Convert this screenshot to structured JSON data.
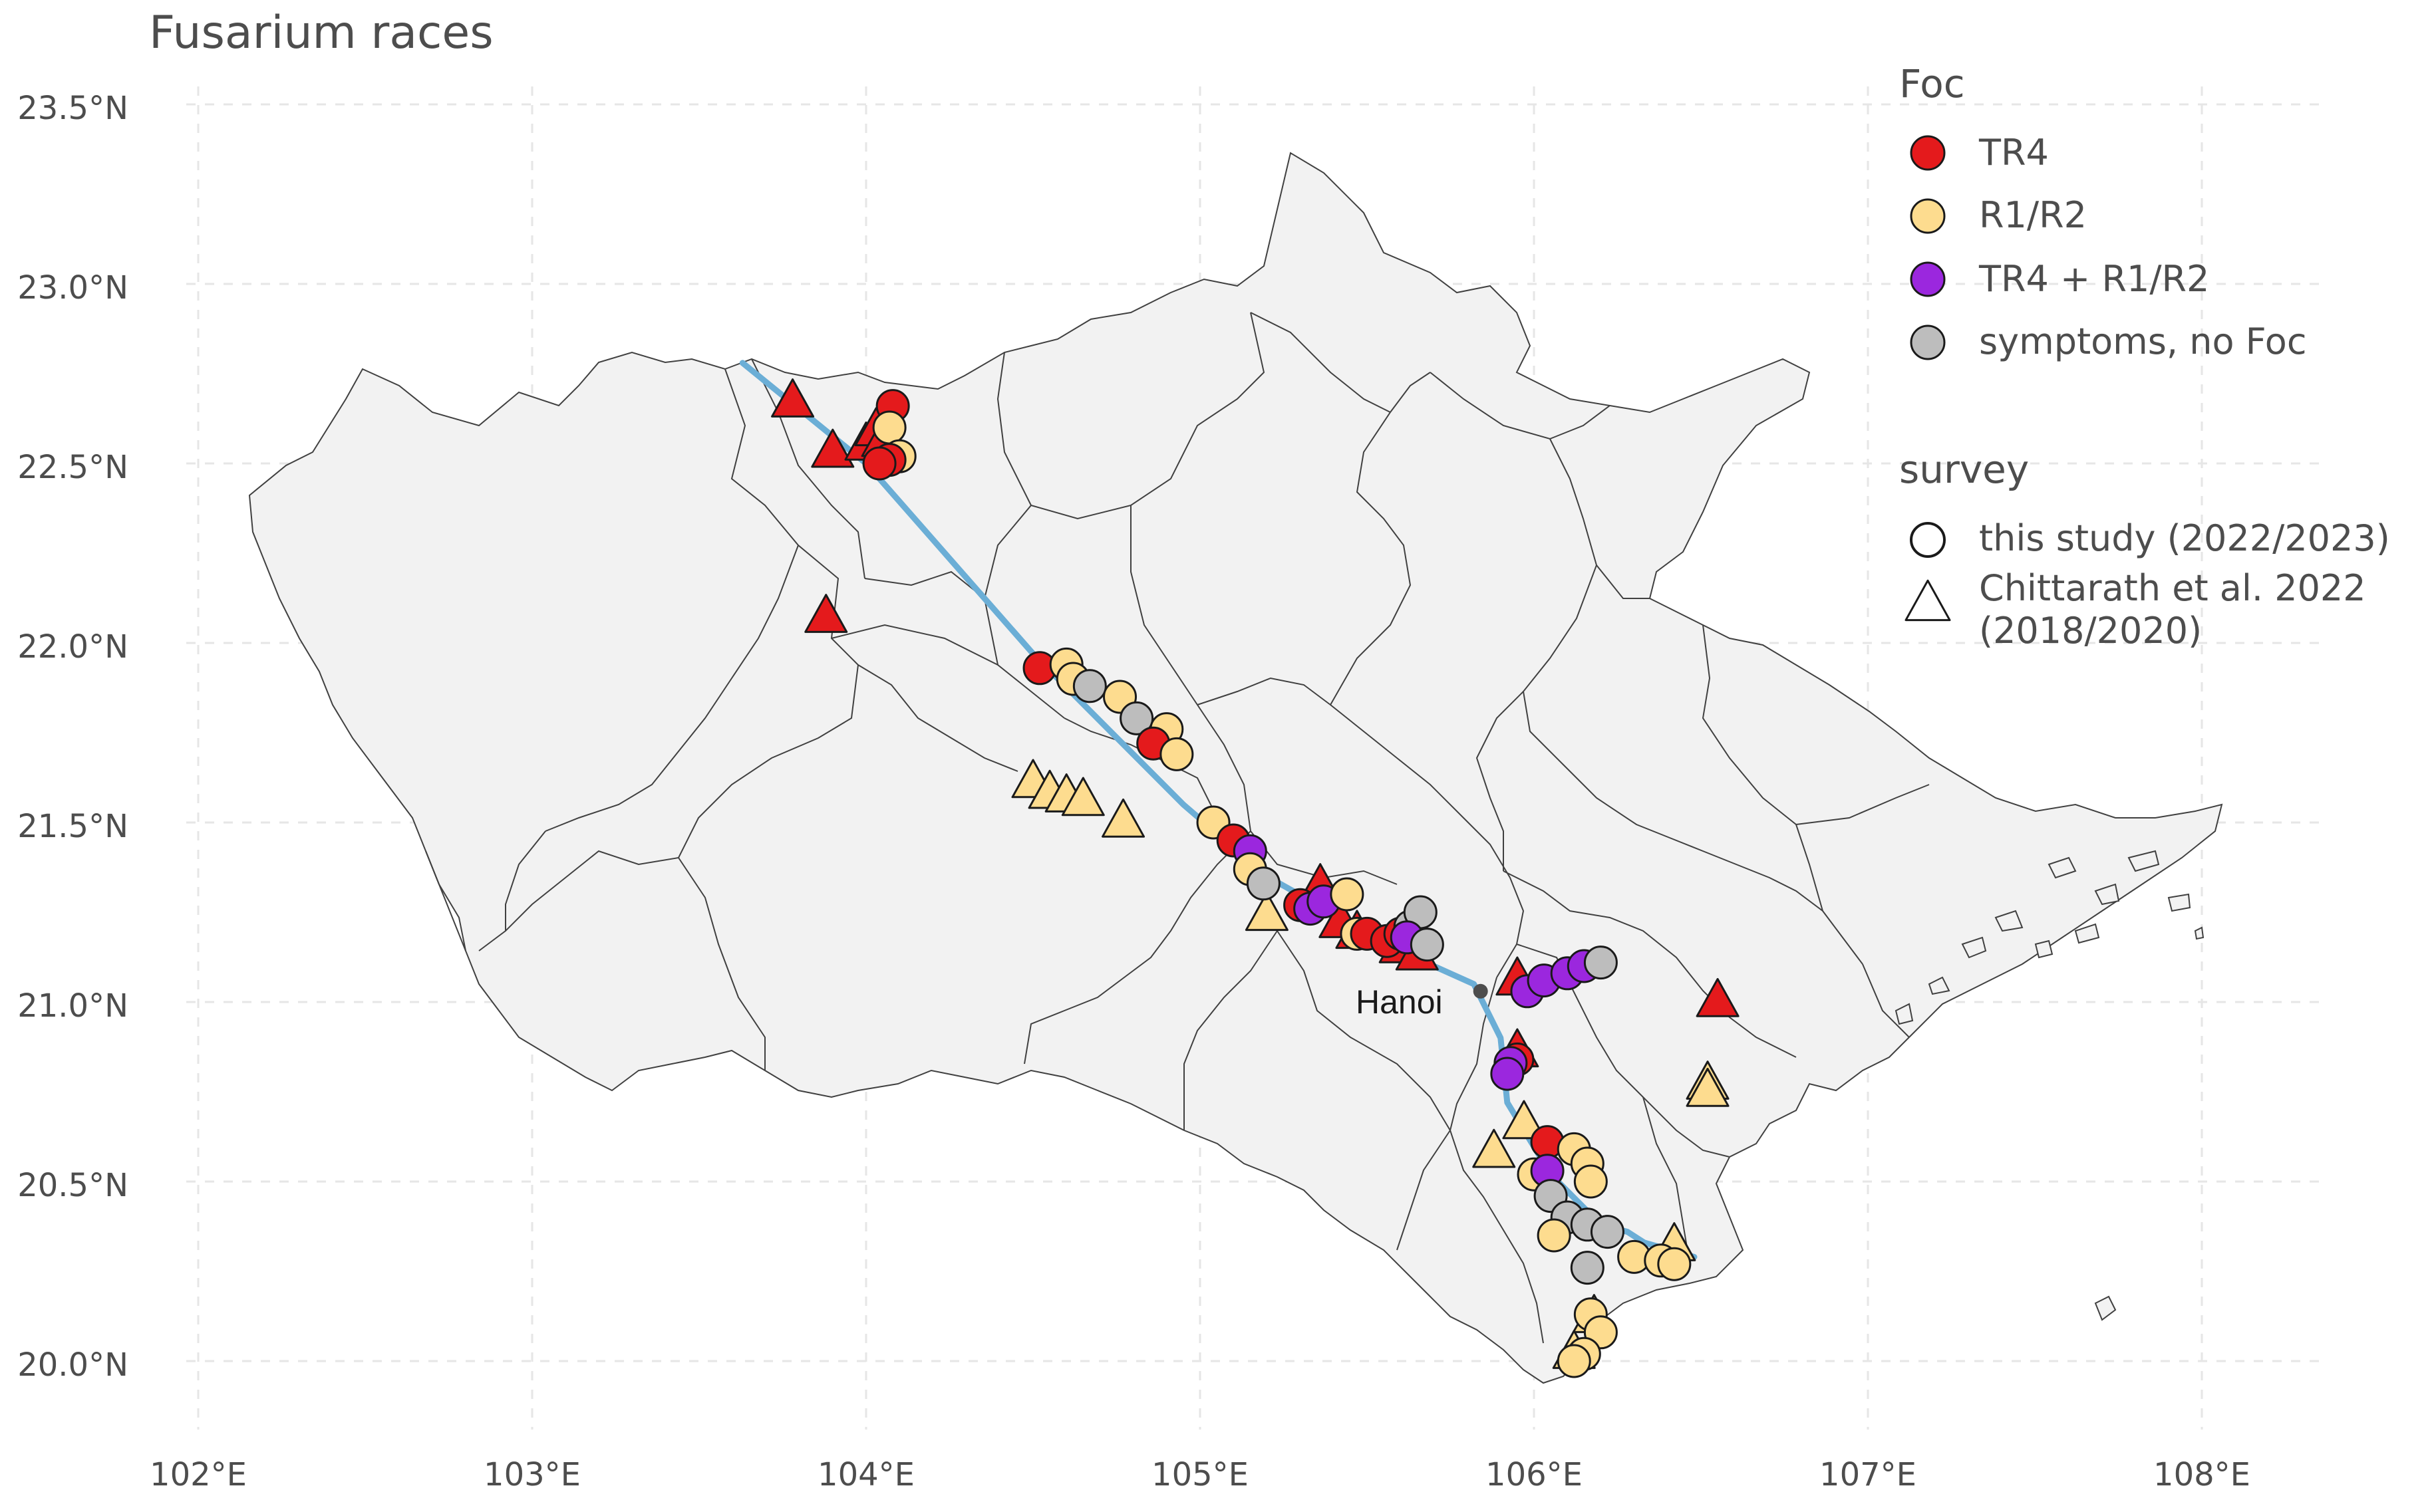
{
  "title": "Fusarium races",
  "axes": {
    "lat_ticks": [
      {
        "value": 23.5,
        "label": "23.5°N"
      },
      {
        "value": 23.0,
        "label": "23.0°N"
      },
      {
        "value": 22.5,
        "label": "22.5°N"
      },
      {
        "value": 22.0,
        "label": "22.0°N"
      },
      {
        "value": 21.5,
        "label": "21.5°N"
      },
      {
        "value": 21.0,
        "label": "21.0°N"
      },
      {
        "value": 20.5,
        "label": "20.5°N"
      },
      {
        "value": 20.0,
        "label": "20.0°N"
      }
    ],
    "lon_ticks": [
      {
        "value": 102,
        "label": "102°E"
      },
      {
        "value": 103,
        "label": "103°E"
      },
      {
        "value": 104,
        "label": "104°E"
      },
      {
        "value": 105,
        "label": "105°E"
      },
      {
        "value": 106,
        "label": "106°E"
      },
      {
        "value": 107,
        "label": "107°E"
      },
      {
        "value": 108,
        "label": "108°E"
      }
    ]
  },
  "legend": {
    "foc_title": "Foc",
    "foc_items": [
      {
        "key": "TR4",
        "label": "TR4",
        "color": "#e41a1c"
      },
      {
        "key": "R1R2",
        "label": "R1/R2",
        "color": "#fddc8f"
      },
      {
        "key": "TR4R1R2",
        "label": "TR4 + R1/R2",
        "color": "#9b27de"
      },
      {
        "key": "none",
        "label": "symptoms, no Foc",
        "color": "#bdbdbd"
      }
    ],
    "survey_title": "survey",
    "survey_items": [
      {
        "shape": "circle",
        "label": "this study (2022/2023)"
      },
      {
        "shape": "triangle",
        "label_line1": "Chittarath et al. 2022",
        "label_line2": "(2018/2020)"
      }
    ]
  },
  "city": {
    "name": "Hanoi",
    "lon": 105.84,
    "lat": 21.03
  },
  "chart_data": {
    "type": "scatter",
    "title": "Fusarium races",
    "xlim": [
      101.95,
      108.3
    ],
    "ylim": [
      19.8,
      23.65
    ],
    "xlabel": "",
    "ylabel": "",
    "river": [
      [
        103.63,
        22.78
      ],
      [
        104.0,
        22.5
      ],
      [
        104.5,
        21.97
      ],
      [
        104.95,
        21.55
      ],
      [
        105.2,
        21.35
      ],
      [
        105.45,
        21.22
      ],
      [
        105.7,
        21.1
      ],
      [
        105.82,
        21.05
      ],
      [
        105.9,
        20.9
      ],
      [
        105.92,
        20.72
      ],
      [
        106.05,
        20.52
      ],
      [
        106.2,
        20.38
      ],
      [
        106.28,
        20.36
      ],
      [
        106.33,
        20.33
      ],
      [
        106.48,
        20.29
      ]
    ],
    "points": [
      {
        "lon": 104.08,
        "lat": 22.66,
        "foc": "TR4",
        "survey": "study"
      },
      {
        "lon": 104.07,
        "lat": 22.6,
        "foc": "R1R2",
        "survey": "study"
      },
      {
        "lon": 104.1,
        "lat": 22.52,
        "foc": "R1R2",
        "survey": "study"
      },
      {
        "lon": 104.07,
        "lat": 22.51,
        "foc": "TR4",
        "survey": "study"
      },
      {
        "lon": 104.04,
        "lat": 22.5,
        "foc": "TR4",
        "survey": "study"
      },
      {
        "lon": 104.52,
        "lat": 21.93,
        "foc": "TR4",
        "survey": "study"
      },
      {
        "lon": 104.6,
        "lat": 21.94,
        "foc": "R1R2",
        "survey": "study"
      },
      {
        "lon": 104.62,
        "lat": 21.9,
        "foc": "R1R2",
        "survey": "study"
      },
      {
        "lon": 104.67,
        "lat": 21.88,
        "foc": "none",
        "survey": "study"
      },
      {
        "lon": 104.76,
        "lat": 21.85,
        "foc": "R1R2",
        "survey": "study"
      },
      {
        "lon": 104.81,
        "lat": 21.79,
        "foc": "none",
        "survey": "study"
      },
      {
        "lon": 104.9,
        "lat": 21.76,
        "foc": "R1R2",
        "survey": "study"
      },
      {
        "lon": 104.86,
        "lat": 21.72,
        "foc": "TR4",
        "survey": "study"
      },
      {
        "lon": 104.93,
        "lat": 21.69,
        "foc": "R1R2",
        "survey": "study"
      },
      {
        "lon": 105.04,
        "lat": 21.5,
        "foc": "R1R2",
        "survey": "study"
      },
      {
        "lon": 105.1,
        "lat": 21.45,
        "foc": "TR4",
        "survey": "study"
      },
      {
        "lon": 105.15,
        "lat": 21.42,
        "foc": "TR4R1R2",
        "survey": "study"
      },
      {
        "lon": 105.15,
        "lat": 21.37,
        "foc": "R1R2",
        "survey": "study"
      },
      {
        "lon": 105.19,
        "lat": 21.33,
        "foc": "none",
        "survey": "study"
      },
      {
        "lon": 105.3,
        "lat": 21.27,
        "foc": "TR4",
        "survey": "study"
      },
      {
        "lon": 105.33,
        "lat": 21.26,
        "foc": "TR4R1R2",
        "survey": "study"
      },
      {
        "lon": 105.37,
        "lat": 21.28,
        "foc": "TR4R1R2",
        "survey": "study"
      },
      {
        "lon": 105.44,
        "lat": 21.3,
        "foc": "R1R2",
        "survey": "study"
      },
      {
        "lon": 105.47,
        "lat": 21.19,
        "foc": "R1R2",
        "survey": "study"
      },
      {
        "lon": 105.5,
        "lat": 21.19,
        "foc": "TR4",
        "survey": "study"
      },
      {
        "lon": 105.56,
        "lat": 21.17,
        "foc": "TR4",
        "survey": "study"
      },
      {
        "lon": 105.6,
        "lat": 21.19,
        "foc": "TR4",
        "survey": "study"
      },
      {
        "lon": 105.63,
        "lat": 21.21,
        "foc": "none",
        "survey": "study"
      },
      {
        "lon": 105.66,
        "lat": 21.25,
        "foc": "none",
        "survey": "study"
      },
      {
        "lon": 105.62,
        "lat": 21.18,
        "foc": "TR4R1R2",
        "survey": "study"
      },
      {
        "lon": 105.68,
        "lat": 21.16,
        "foc": "none",
        "survey": "study"
      },
      {
        "lon": 105.98,
        "lat": 21.03,
        "foc": "TR4R1R2",
        "survey": "study"
      },
      {
        "lon": 106.03,
        "lat": 21.06,
        "foc": "TR4R1R2",
        "survey": "study"
      },
      {
        "lon": 106.1,
        "lat": 21.08,
        "foc": "TR4R1R2",
        "survey": "study"
      },
      {
        "lon": 106.15,
        "lat": 21.1,
        "foc": "TR4R1R2",
        "survey": "study"
      },
      {
        "lon": 106.2,
        "lat": 21.11,
        "foc": "none",
        "survey": "study"
      },
      {
        "lon": 105.95,
        "lat": 20.84,
        "foc": "TR4",
        "survey": "study"
      },
      {
        "lon": 105.93,
        "lat": 20.83,
        "foc": "TR4R1R2",
        "survey": "study"
      },
      {
        "lon": 105.92,
        "lat": 20.8,
        "foc": "TR4R1R2",
        "survey": "study"
      },
      {
        "lon": 106.04,
        "lat": 20.61,
        "foc": "TR4",
        "survey": "study"
      },
      {
        "lon": 106.12,
        "lat": 20.59,
        "foc": "R1R2",
        "survey": "study"
      },
      {
        "lon": 106.16,
        "lat": 20.55,
        "foc": "R1R2",
        "survey": "study"
      },
      {
        "lon": 106.17,
        "lat": 20.5,
        "foc": "R1R2",
        "survey": "study"
      },
      {
        "lon": 106.0,
        "lat": 20.52,
        "foc": "R1R2",
        "survey": "study"
      },
      {
        "lon": 106.04,
        "lat": 20.53,
        "foc": "TR4R1R2",
        "survey": "study"
      },
      {
        "lon": 106.05,
        "lat": 20.46,
        "foc": "none",
        "survey": "study"
      },
      {
        "lon": 106.1,
        "lat": 20.4,
        "foc": "none",
        "survey": "study"
      },
      {
        "lon": 106.16,
        "lat": 20.38,
        "foc": "none",
        "survey": "study"
      },
      {
        "lon": 106.22,
        "lat": 20.36,
        "foc": "none",
        "survey": "study"
      },
      {
        "lon": 106.06,
        "lat": 20.35,
        "foc": "R1R2",
        "survey": "study"
      },
      {
        "lon": 106.16,
        "lat": 20.26,
        "foc": "none",
        "survey": "study"
      },
      {
        "lon": 106.3,
        "lat": 20.29,
        "foc": "R1R2",
        "survey": "study"
      },
      {
        "lon": 106.38,
        "lat": 20.28,
        "foc": "R1R2",
        "survey": "study"
      },
      {
        "lon": 106.42,
        "lat": 20.27,
        "foc": "R1R2",
        "survey": "study"
      },
      {
        "lon": 106.17,
        "lat": 20.13,
        "foc": "R1R2",
        "survey": "study"
      },
      {
        "lon": 106.2,
        "lat": 20.08,
        "foc": "R1R2",
        "survey": "study"
      },
      {
        "lon": 106.15,
        "lat": 20.02,
        "foc": "R1R2",
        "survey": "study"
      },
      {
        "lon": 106.12,
        "lat": 20.0,
        "foc": "R1R2",
        "survey": "study"
      },
      {
        "lon": 103.78,
        "lat": 22.67,
        "foc": "TR4",
        "survey": "chittarath"
      },
      {
        "lon": 103.9,
        "lat": 22.53,
        "foc": "TR4",
        "survey": "chittarath"
      },
      {
        "lon": 104.0,
        "lat": 22.55,
        "foc": "TR4",
        "survey": "chittarath"
      },
      {
        "lon": 104.03,
        "lat": 22.59,
        "foc": "TR4",
        "survey": "chittarath"
      },
      {
        "lon": 104.05,
        "lat": 22.56,
        "foc": "TR4",
        "survey": "chittarath"
      },
      {
        "lon": 103.88,
        "lat": 22.07,
        "foc": "TR4",
        "survey": "chittarath"
      },
      {
        "lon": 104.5,
        "lat": 21.61,
        "foc": "R1R2",
        "survey": "chittarath"
      },
      {
        "lon": 104.55,
        "lat": 21.58,
        "foc": "R1R2",
        "survey": "chittarath"
      },
      {
        "lon": 104.6,
        "lat": 21.57,
        "foc": "R1R2",
        "survey": "chittarath"
      },
      {
        "lon": 104.65,
        "lat": 21.56,
        "foc": "R1R2",
        "survey": "chittarath"
      },
      {
        "lon": 104.77,
        "lat": 21.5,
        "foc": "R1R2",
        "survey": "chittarath"
      },
      {
        "lon": 105.2,
        "lat": 21.24,
        "foc": "R1R2",
        "survey": "chittarath"
      },
      {
        "lon": 105.36,
        "lat": 21.32,
        "foc": "TR4",
        "survey": "chittarath"
      },
      {
        "lon": 105.42,
        "lat": 21.22,
        "foc": "TR4",
        "survey": "chittarath"
      },
      {
        "lon": 105.47,
        "lat": 21.19,
        "foc": "TR4",
        "survey": "chittarath"
      },
      {
        "lon": 105.6,
        "lat": 21.15,
        "foc": "TR4",
        "survey": "chittarath"
      },
      {
        "lon": 105.65,
        "lat": 21.13,
        "foc": "TR4",
        "survey": "chittarath"
      },
      {
        "lon": 105.95,
        "lat": 21.06,
        "foc": "TR4",
        "survey": "chittarath"
      },
      {
        "lon": 105.95,
        "lat": 20.86,
        "foc": "TR4",
        "survey": "chittarath"
      },
      {
        "lon": 105.97,
        "lat": 20.66,
        "foc": "R1R2",
        "survey": "chittarath"
      },
      {
        "lon": 105.88,
        "lat": 20.58,
        "foc": "R1R2",
        "survey": "chittarath"
      },
      {
        "lon": 106.42,
        "lat": 20.32,
        "foc": "R1R2",
        "survey": "chittarath"
      },
      {
        "lon": 106.55,
        "lat": 21.0,
        "foc": "TR4",
        "survey": "chittarath"
      },
      {
        "lon": 106.52,
        "lat": 20.77,
        "foc": "R1R2",
        "survey": "chittarath"
      },
      {
        "lon": 106.52,
        "lat": 20.75,
        "foc": "R1R2",
        "survey": "chittarath"
      },
      {
        "lon": 106.18,
        "lat": 20.12,
        "foc": "R1R2",
        "survey": "chittarath"
      },
      {
        "lon": 106.12,
        "lat": 20.02,
        "foc": "R1R2",
        "survey": "chittarath"
      }
    ]
  }
}
